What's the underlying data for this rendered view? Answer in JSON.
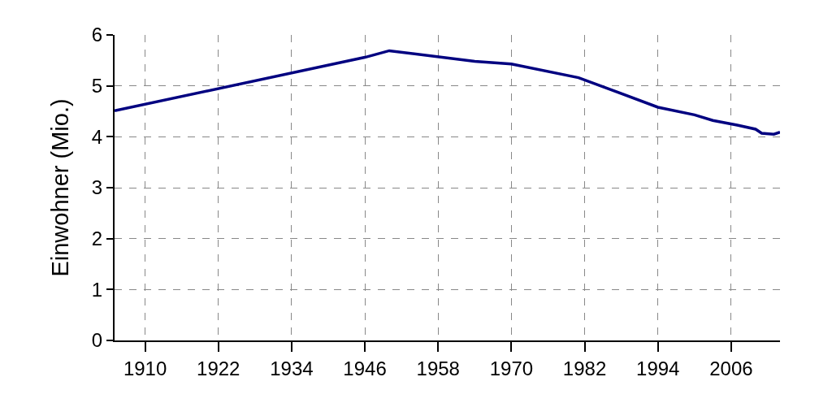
{
  "chart_data": {
    "type": "line",
    "ylabel": "Einwohner (Mio.)",
    "x": [
      1905,
      1946,
      1950,
      1964,
      1970,
      1981,
      1994,
      2000,
      2003,
      2007,
      2010,
      2011,
      2013,
      2014
    ],
    "series": [
      {
        "color": "#000080",
        "values": [
          4.51,
          5.56,
          5.69,
          5.48,
          5.43,
          5.16,
          4.58,
          4.43,
          4.32,
          4.23,
          4.15,
          4.07,
          4.05,
          4.09
        ]
      }
    ],
    "xlim": [
      1905,
      2014
    ],
    "xticks": [
      1910,
      1922,
      1934,
      1946,
      1958,
      1970,
      1982,
      1994,
      2006
    ],
    "ylim": [
      0,
      6
    ],
    "yticks": [
      0,
      1,
      2,
      3,
      4,
      5,
      6
    ],
    "grid": true,
    "line_style": "solid",
    "marker": "none"
  }
}
